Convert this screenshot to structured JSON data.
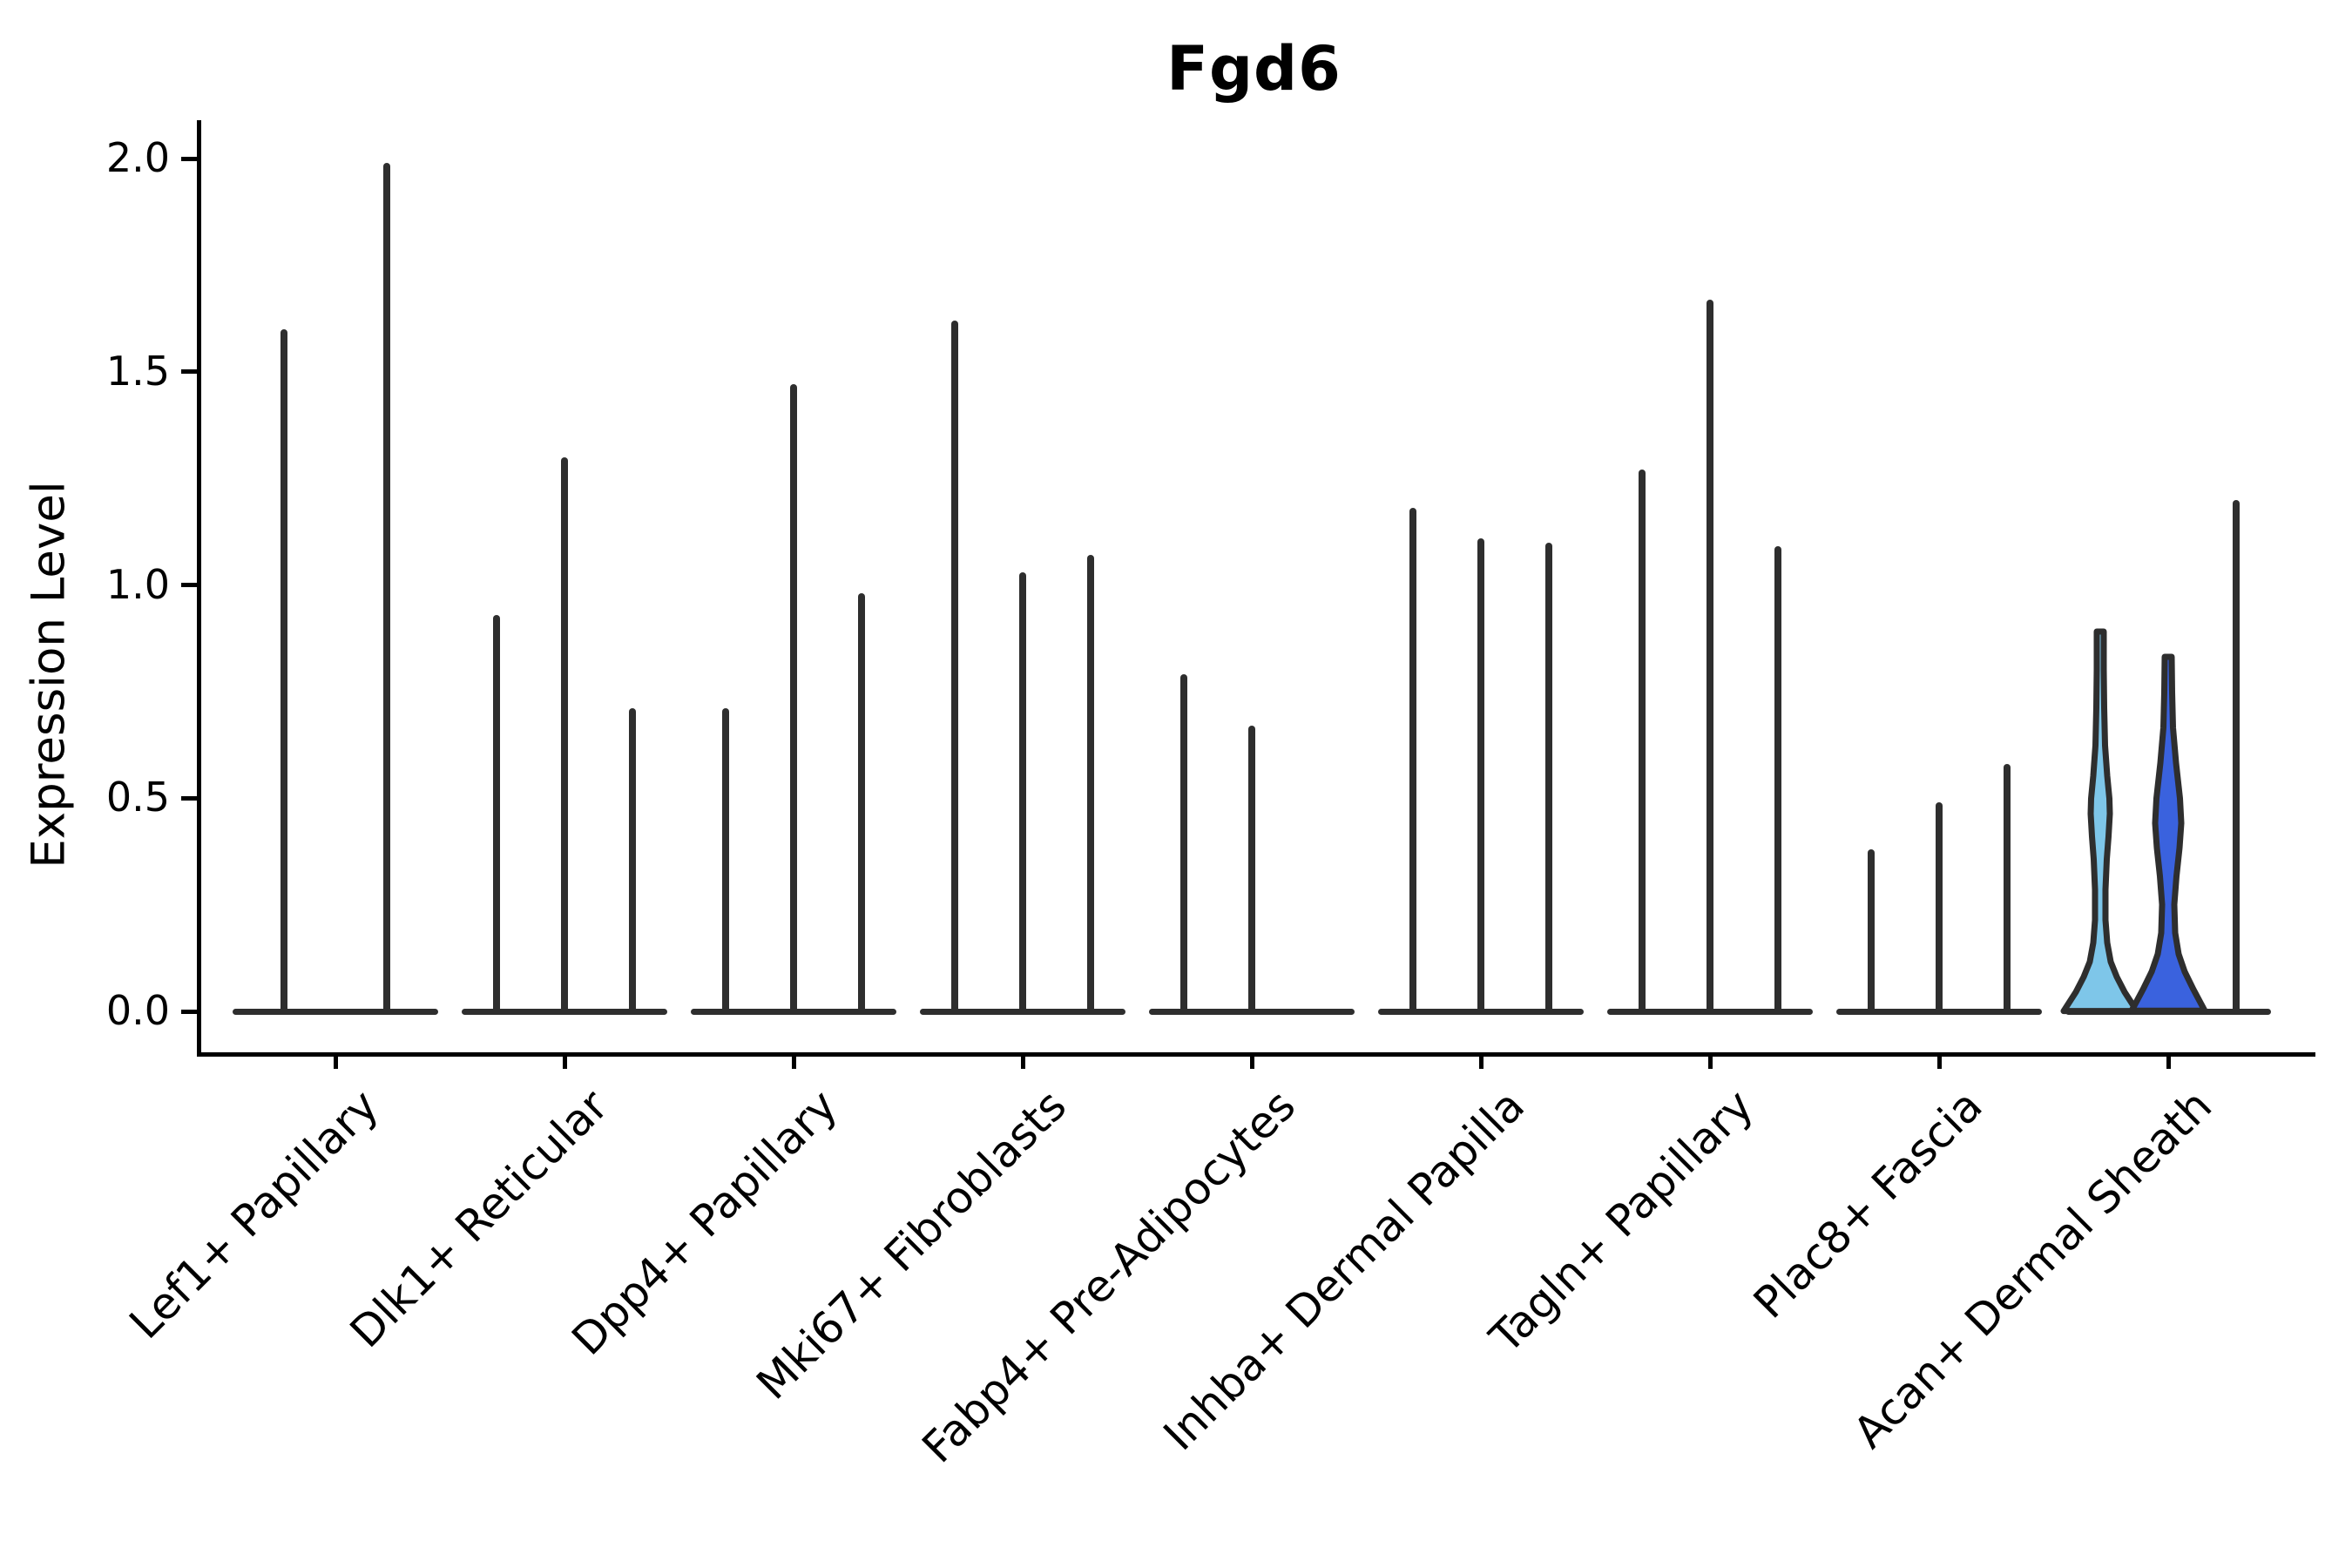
{
  "figure": {
    "title": "Fgd6"
  },
  "chart_data": {
    "type": "violin",
    "title": "Fgd6",
    "xlabel": "",
    "ylabel": "Expression Level",
    "ylim": [
      0,
      2.05
    ],
    "yticks": [
      0,
      0.5,
      1.0,
      1.5,
      2.0
    ],
    "ytick_labels": [
      "0.0",
      "0.5",
      "1.0",
      "1.5",
      "2.0"
    ],
    "x_tick_label_rotation_deg": 45,
    "grid": false,
    "legend": false,
    "outline_color": "#2e2e2e",
    "axis_color": "#000000",
    "categories": [
      "Lef1+ Papillary",
      "Dlk1+ Reticular",
      "Dpp4+ Papillary",
      "Mki67+ Fibroblasts",
      "Fabp4+ Pre-Adipocytes",
      "Inhba+ Dermal Papilla",
      "Tagln+ Papillary",
      "Plac8+ Fascia",
      "Acan+ Dermal Sheath"
    ],
    "groups": [
      {
        "category": "Lef1+ Papillary",
        "violins": [
          {
            "max": 1.6
          },
          {
            "max": 1.99
          }
        ]
      },
      {
        "category": "Dlk1+ Reticular",
        "violins": [
          {
            "max": 0.93
          },
          {
            "max": 1.3
          },
          {
            "max": 0.71
          }
        ]
      },
      {
        "category": "Dpp4+ Papillary",
        "violins": [
          {
            "max": 0.71
          },
          {
            "max": 1.47
          },
          {
            "max": 0.98
          }
        ]
      },
      {
        "category": "Mki67+ Fibroblasts",
        "violins": [
          {
            "max": 1.62
          },
          {
            "max": 1.03
          },
          {
            "max": 1.07
          }
        ]
      },
      {
        "category": "Fabp4+ Pre-Adipocytes",
        "violins": [
          {
            "max": 0.79
          },
          {
            "max": 0.67
          },
          {
            "max": 0
          }
        ]
      },
      {
        "category": "Inhba+ Dermal Papilla",
        "violins": [
          {
            "max": 1.18
          },
          {
            "max": 1.11
          },
          {
            "max": 1.1
          }
        ]
      },
      {
        "category": "Tagln+ Papillary",
        "violins": [
          {
            "max": 1.27
          },
          {
            "max": 1.67
          },
          {
            "max": 1.09
          }
        ]
      },
      {
        "category": "Plac8+ Fascia",
        "violins": [
          {
            "max": 0.38
          },
          {
            "max": 0.49
          },
          {
            "max": 0.58
          }
        ]
      },
      {
        "category": "Acan+ Dermal Sheath",
        "violins": [
          {
            "max": 0.89,
            "fill": "#7ec6e9",
            "profile": [
              [
                0,
                4
              ],
              [
                0.1,
                4
              ],
              [
                0.2,
                4.5
              ],
              [
                0.3,
                5.5
              ],
              [
                0.38,
                8
              ],
              [
                0.44,
                10.5
              ],
              [
                0.48,
                11
              ],
              [
                0.54,
                9.5
              ],
              [
                0.6,
                7.5
              ],
              [
                0.68,
                6
              ],
              [
                0.76,
                6
              ],
              [
                0.82,
                8
              ],
              [
                0.87,
                12
              ],
              [
                0.91,
                19
              ],
              [
                0.95,
                28
              ],
              [
                1,
                42
              ]
            ]
          },
          {
            "max": 0.83,
            "fill": "#3a62de",
            "profile": [
              [
                0,
                4
              ],
              [
                0.1,
                4.5
              ],
              [
                0.2,
                5.5
              ],
              [
                0.3,
                9
              ],
              [
                0.4,
                13.5
              ],
              [
                0.47,
                15
              ],
              [
                0.54,
                13
              ],
              [
                0.62,
                9.5
              ],
              [
                0.7,
                7
              ],
              [
                0.78,
                8
              ],
              [
                0.84,
                12
              ],
              [
                0.89,
                19
              ],
              [
                0.94,
                29
              ],
              [
                1,
                42
              ]
            ]
          },
          {
            "max": 1.2
          }
        ]
      }
    ]
  }
}
